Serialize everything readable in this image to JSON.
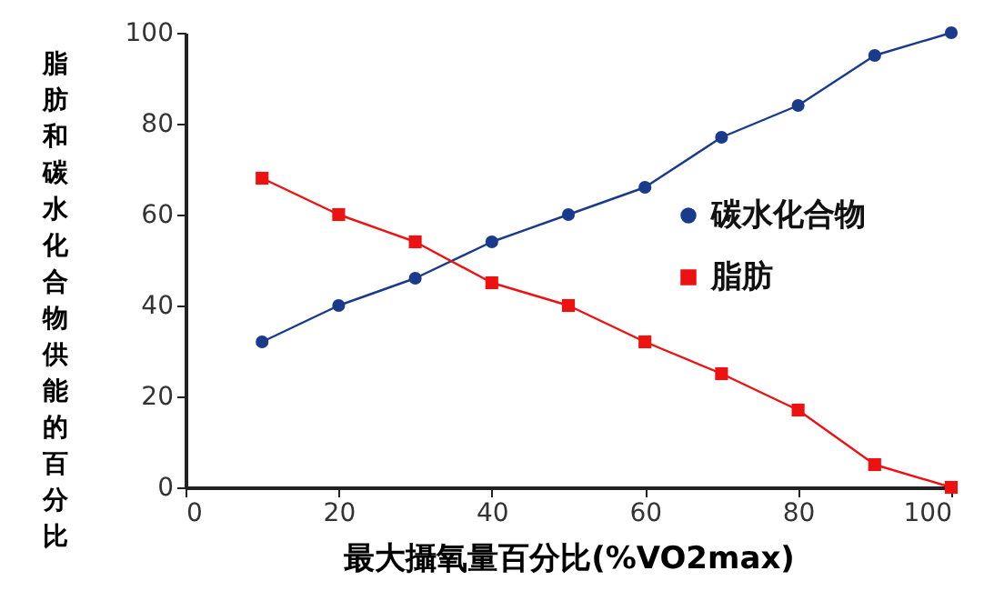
{
  "chart_data": {
    "type": "line",
    "xlabel": "最大攝氧量百分比(%VO2max)",
    "ylabel": "脂肪和碳水化合物供能的百分比",
    "x": [
      10,
      20,
      30,
      40,
      50,
      60,
      70,
      80,
      90,
      100
    ],
    "series": [
      {
        "name": "碳水化合物",
        "color": "#1a3a8c",
        "marker": "circle",
        "values": [
          32,
          40,
          46,
          54,
          60,
          66,
          77,
          84,
          95,
          100
        ]
      },
      {
        "name": "脂肪",
        "color": "#ee1111",
        "marker": "square",
        "values": [
          68,
          60,
          54,
          45,
          40,
          32,
          25,
          17,
          5,
          0
        ]
      }
    ],
    "xlim": [
      0,
      100
    ],
    "xticks": [
      0,
      20,
      40,
      60,
      80,
      100
    ],
    "ylim": [
      0,
      100
    ],
    "yticks": [
      0,
      20,
      40,
      60,
      80,
      100
    ],
    "grid": false,
    "legend": "right",
    "line_style": "solid"
  }
}
